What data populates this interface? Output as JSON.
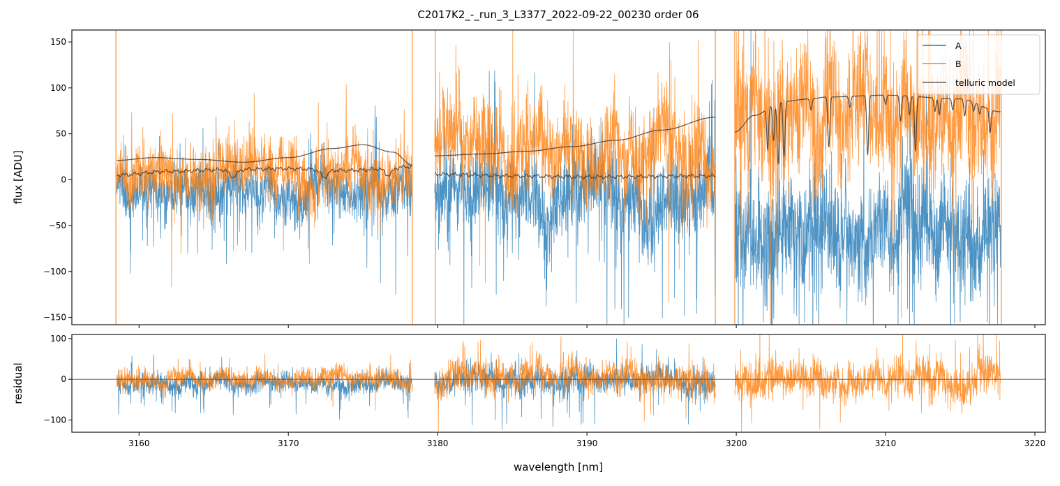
{
  "chart_data": [
    {
      "panel": "flux",
      "type": "line",
      "title": "C2017K2_-_run_3_L3377_2022-09-22_00230  order 06",
      "xlabel": "",
      "ylabel": "flux [ADU]",
      "xlim": [
        3155.5,
        3220.7
      ],
      "ylim": [
        -158,
        163
      ],
      "yticks": [
        150,
        100,
        50,
        0,
        -50,
        -100,
        -150
      ],
      "yticklabels": [
        "150",
        "100",
        "50",
        "0",
        "−50",
        "−100",
        "−150"
      ],
      "xticks": [
        3160,
        3170,
        3180,
        3190,
        3200,
        3210,
        3220
      ],
      "grid": false,
      "legend": {
        "position": "top-right",
        "entries": [
          {
            "label": "A",
            "color": "#1f77b4"
          },
          {
            "label": "B",
            "color": "#ff7f0e"
          },
          {
            "label": "telluric model",
            "color": "#3a3a3a"
          }
        ]
      },
      "segments": [
        {
          "x": [
            3158.5,
            3178.3
          ],
          "A_baseline": -8,
          "A_noise": 25,
          "B_baseline": 10,
          "B_noise": 30
        },
        {
          "x": [
            3179.8,
            3198.6
          ],
          "A_baseline": -25,
          "A_noise": 40,
          "B_baseline": 30,
          "B_noise": 45
        },
        {
          "x": [
            3199.9,
            3217.7
          ],
          "A_baseline": -55,
          "A_noise": 55,
          "B_baseline": 70,
          "B_noise": 65
        }
      ],
      "series": [
        {
          "name": "A",
          "color": "#1f77b4"
        },
        {
          "name": "B",
          "color": "#ff7f0e"
        },
        {
          "name": "telluric model",
          "color": "#3a3a3a",
          "curves": [
            {
              "x": [
                3158.5,
                3161,
                3164,
                3167,
                3170,
                3173,
                3175,
                3177,
                3178.3
              ],
              "y": [
                21,
                24,
                22,
                19,
                24,
                34,
                38,
                30,
                16
              ]
            },
            {
              "x": [
                3158.5,
                3162,
                3166,
                3170,
                3174,
                3178.3
              ],
              "y": [
                5,
                9,
                11,
                12,
                10,
                14
              ]
            },
            {
              "x": [
                3179.8,
                3183,
                3186,
                3189,
                3192,
                3195,
                3198.6
              ],
              "y": [
                26,
                28,
                31,
                36,
                43,
                54,
                68
              ]
            },
            {
              "x": [
                3179.8,
                3185,
                3190,
                3198.6
              ],
              "y": [
                6,
                4,
                3,
                4
              ]
            },
            {
              "x": [
                3199.9,
                3201.2,
                3203,
                3205,
                3206,
                3210,
                3215,
                3217.7
              ],
              "y": [
                52,
                70,
                85,
                88,
                90,
                92,
                88,
                74
              ]
            }
          ],
          "absorption_lines": [
            {
              "x": 3202.1,
              "depth": 45
            },
            {
              "x": 3202.5,
              "depth": 40
            },
            {
              "x": 3202.8,
              "depth": 68
            },
            {
              "x": 3203.2,
              "depth": 60
            },
            {
              "x": 3205.0,
              "depth": 12
            },
            {
              "x": 3206.2,
              "depth": 55
            },
            {
              "x": 3207.6,
              "depth": 12
            },
            {
              "x": 3208.8,
              "depth": 65
            },
            {
              "x": 3210.0,
              "depth": 10
            },
            {
              "x": 3211.0,
              "depth": 28
            },
            {
              "x": 3211.6,
              "depth": 20
            },
            {
              "x": 3212.0,
              "depth": 60
            },
            {
              "x": 3213.3,
              "depth": 15
            },
            {
              "x": 3213.6,
              "depth": 18
            },
            {
              "x": 3214.5,
              "depth": 12
            },
            {
              "x": 3215.3,
              "depth": 18
            },
            {
              "x": 3215.9,
              "depth": 10
            },
            {
              "x": 3216.3,
              "depth": 10
            },
            {
              "x": 3217.0,
              "depth": 25
            }
          ]
        }
      ],
      "edge_spikes": [
        3158.45,
        3178.3,
        3179.85,
        3198.6,
        3199.9,
        3217.75
      ]
    },
    {
      "panel": "residual",
      "type": "line",
      "xlabel": "wavelength [nm]",
      "ylabel": "residual",
      "xlim": [
        3155.5,
        3220.7
      ],
      "ylim": [
        -130,
        110
      ],
      "yticks": [
        100,
        0,
        -100
      ],
      "yticklabels": [
        "100",
        "0",
        "−100"
      ],
      "xticks": [
        3160,
        3170,
        3180,
        3190,
        3200,
        3210,
        3220
      ],
      "xticklabels": [
        "3160",
        "3170",
        "3180",
        "3190",
        "3200",
        "3210",
        "3220"
      ],
      "zero_line": 0,
      "segments": [
        {
          "x": [
            3158.5,
            3178.3
          ],
          "A_noise": 18,
          "B_noise": 18,
          "A_present": true
        },
        {
          "x": [
            3179.8,
            3198.6
          ],
          "A_noise": 25,
          "B_noise": 28,
          "A_present": true
        },
        {
          "x": [
            3199.9,
            3217.7
          ],
          "A_noise": 0,
          "B_noise": 35,
          "A_present": false
        }
      ],
      "series": [
        {
          "name": "A",
          "color": "#1f77b4"
        },
        {
          "name": "B",
          "color": "#ff7f0e"
        }
      ]
    }
  ]
}
